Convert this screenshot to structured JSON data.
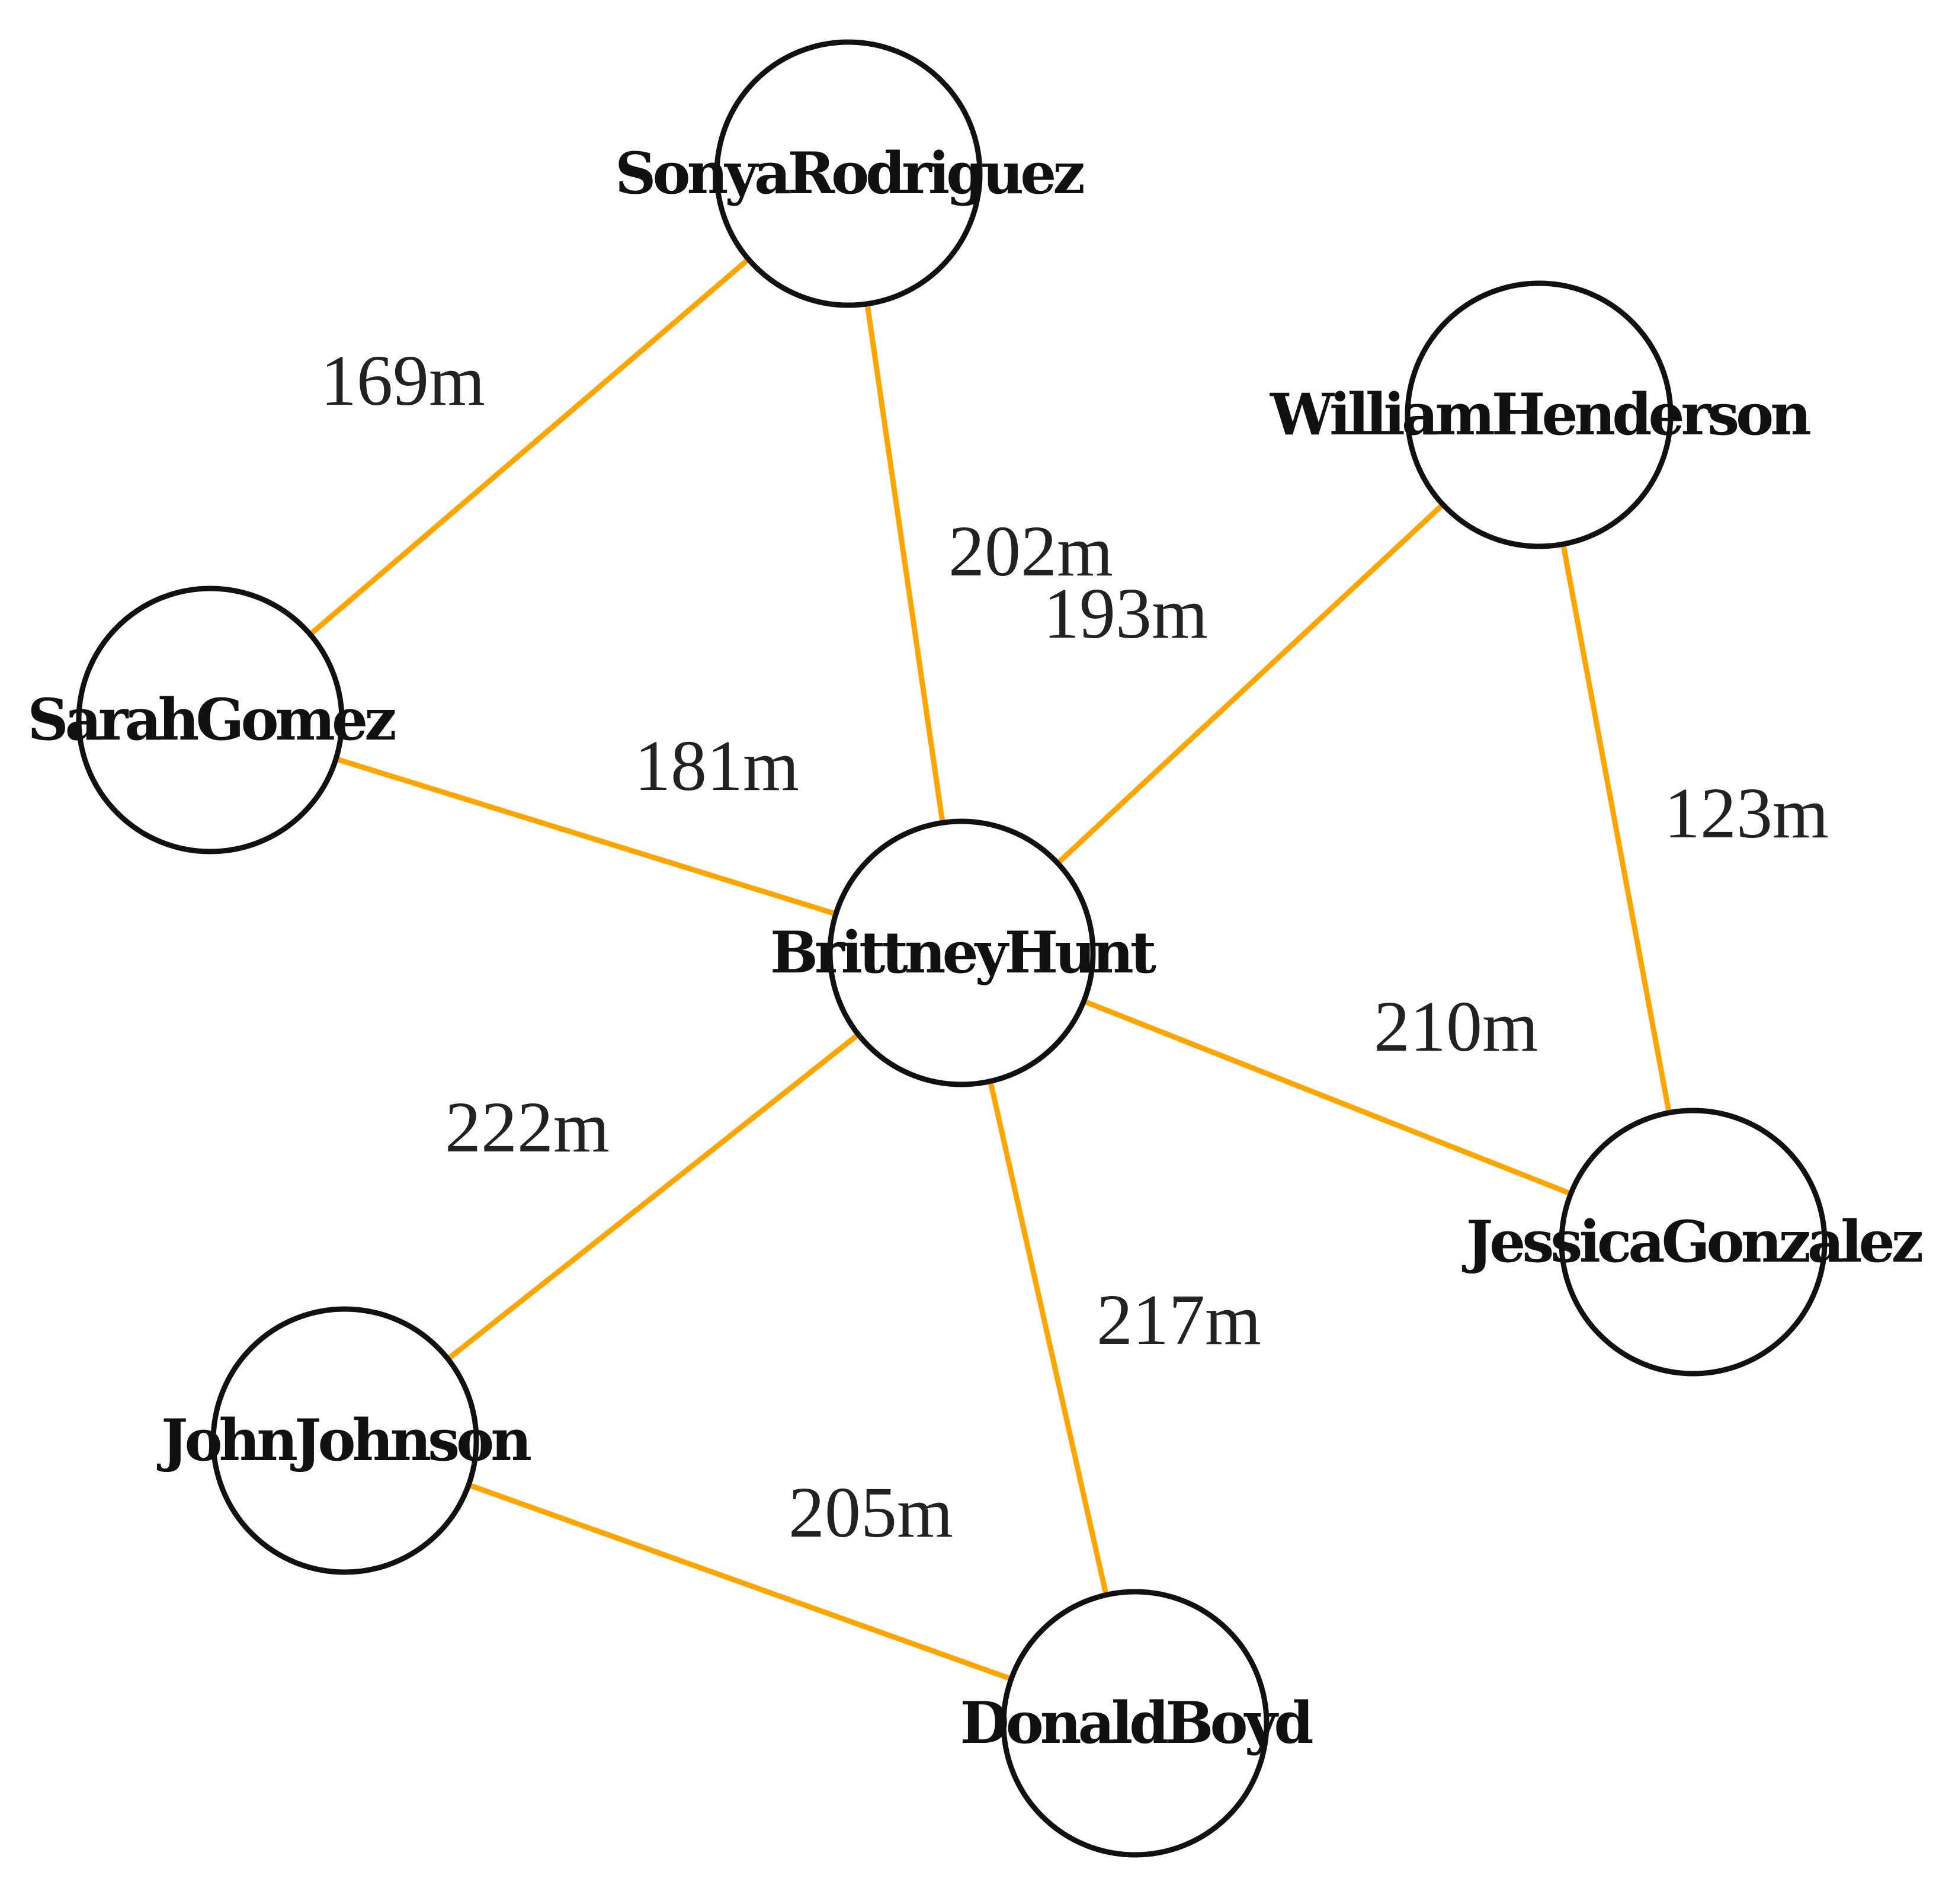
{
  "colors": {
    "edge": "#ffa500",
    "node_stroke": "#111111",
    "label": "#222222",
    "background": "#ffffff"
  },
  "nodes": [
    {
      "id": "sonya",
      "label": "SonyaRodriguez"
    },
    {
      "id": "william",
      "label": "WilliamHenderson"
    },
    {
      "id": "sarah",
      "label": "SarahGomez"
    },
    {
      "id": "brittney",
      "label": "BrittneyHunt"
    },
    {
      "id": "jessica",
      "label": "JessicaGonzalez"
    },
    {
      "id": "john",
      "label": "JohnJohnson"
    },
    {
      "id": "donald",
      "label": "DonaldBoyd"
    }
  ],
  "edges": [
    {
      "from": "sonya",
      "to": "sarah",
      "label": "169m"
    },
    {
      "from": "sonya",
      "to": "brittney",
      "label": "202m"
    },
    {
      "from": "william",
      "to": "brittney",
      "label": "193m"
    },
    {
      "from": "sarah",
      "to": "brittney",
      "label": "181m"
    },
    {
      "from": "william",
      "to": "jessica",
      "label": "123m"
    },
    {
      "from": "brittney",
      "to": "jessica",
      "label": "210m"
    },
    {
      "from": "brittney",
      "to": "john",
      "label": "222m"
    },
    {
      "from": "brittney",
      "to": "donald",
      "label": "217m"
    },
    {
      "from": "john",
      "to": "donald",
      "label": "205m"
    }
  ]
}
